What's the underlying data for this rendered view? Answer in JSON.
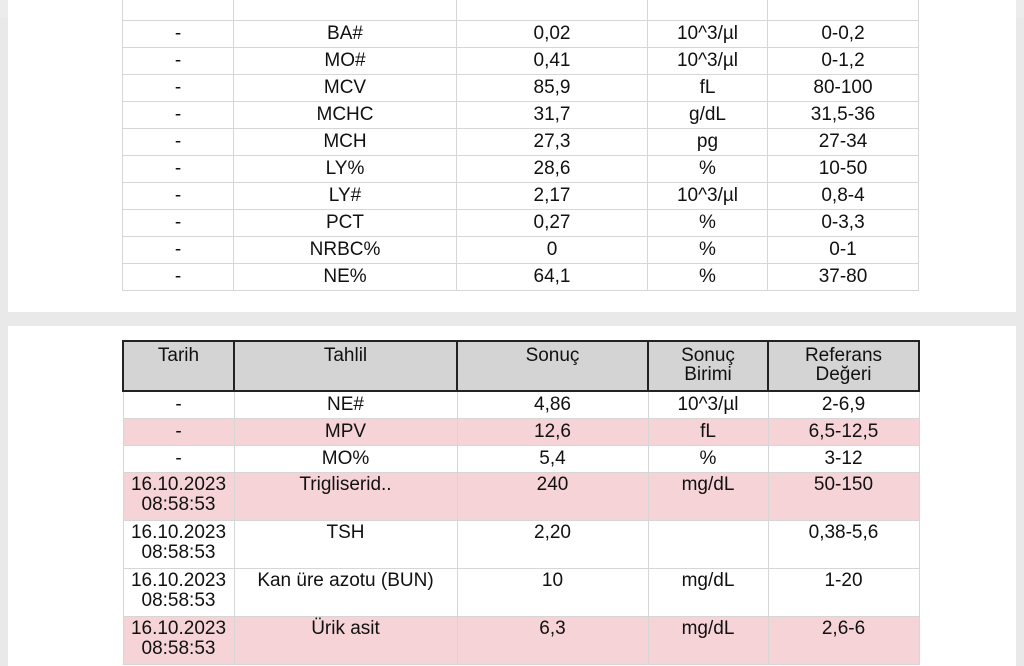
{
  "top_table": {
    "rows": [
      {
        "tarih": "-",
        "tahlil": "BA#",
        "sonuc": "0,02",
        "birim": "10^3/µl",
        "referans": "0-0,2",
        "flag": false
      },
      {
        "tarih": "-",
        "tahlil": "MO#",
        "sonuc": "0,41",
        "birim": "10^3/µl",
        "referans": "0-1,2",
        "flag": false
      },
      {
        "tarih": "-",
        "tahlil": "MCV",
        "sonuc": "85,9",
        "birim": "fL",
        "referans": "80-100",
        "flag": false
      },
      {
        "tarih": "-",
        "tahlil": "MCHC",
        "sonuc": "31,7",
        "birim": "g/dL",
        "referans": "31,5-36",
        "flag": false
      },
      {
        "tarih": "-",
        "tahlil": "MCH",
        "sonuc": "27,3",
        "birim": "pg",
        "referans": "27-34",
        "flag": false
      },
      {
        "tarih": "-",
        "tahlil": "LY%",
        "sonuc": "28,6",
        "birim": "%",
        "referans": "10-50",
        "flag": false
      },
      {
        "tarih": "-",
        "tahlil": "LY#",
        "sonuc": "2,17",
        "birim": "10^3/µl",
        "referans": "0,8-4",
        "flag": false
      },
      {
        "tarih": "-",
        "tahlil": "PCT",
        "sonuc": "0,27",
        "birim": "%",
        "referans": "0-3,3",
        "flag": false
      },
      {
        "tarih": "-",
        "tahlil": "NRBC%",
        "sonuc": "0",
        "birim": "%",
        "referans": "0-1",
        "flag": false
      },
      {
        "tarih": "-",
        "tahlil": "NE%",
        "sonuc": "64,1",
        "birim": "%",
        "referans": "37-80",
        "flag": false
      }
    ]
  },
  "bottom_table": {
    "headers": {
      "tarih": "Tarih",
      "tahlil": "Tahlil",
      "sonuc": "Sonuç",
      "birim_line1": "Sonuç",
      "birim_line2": "Birimi",
      "referans_line1": "Referans",
      "referans_line2": "Değeri"
    },
    "rows": [
      {
        "tarih": "-",
        "saat": "",
        "tahlil": "NE#",
        "sonuc": "4,86",
        "birim": "10^3/µl",
        "referans": "2-6,9",
        "flag": false
      },
      {
        "tarih": "-",
        "saat": "",
        "tahlil": "MPV",
        "sonuc": "12,6",
        "birim": "fL",
        "referans": "6,5-12,5",
        "flag": true
      },
      {
        "tarih": "-",
        "saat": "",
        "tahlil": "MO%",
        "sonuc": "5,4",
        "birim": "%",
        "referans": "3-12",
        "flag": false
      },
      {
        "tarih": "16.10.2023",
        "saat": "08:58:53",
        "tahlil": "Trigliserid..",
        "sonuc": "240",
        "birim": "mg/dL",
        "referans": "50-150",
        "flag": true
      },
      {
        "tarih": "16.10.2023",
        "saat": "08:58:53",
        "tahlil": "TSH",
        "sonuc": "2,20",
        "birim": "",
        "referans": "0,38-5,6",
        "flag": false
      },
      {
        "tarih": "16.10.2023",
        "saat": "08:58:53",
        "tahlil": "Kan üre azotu (BUN)",
        "sonuc": "10",
        "birim": "mg/dL",
        "referans": "1-20",
        "flag": false
      },
      {
        "tarih": "16.10.2023",
        "saat": "08:58:53",
        "tahlil": "Ürik asit",
        "sonuc": "6,3",
        "birim": "mg/dL",
        "referans": "2,6-6",
        "flag": true
      }
    ]
  },
  "colors": {
    "flag_row": "#f5d3d7",
    "header_bg": "#d4d4d4",
    "page_bg": "#e9e9e9"
  }
}
